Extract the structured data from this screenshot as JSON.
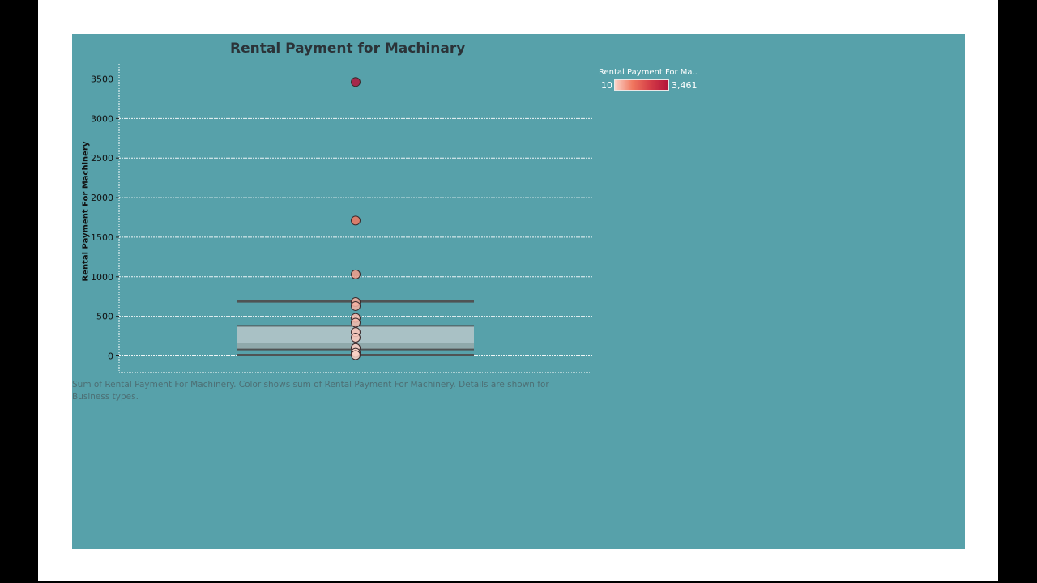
{
  "colors": {
    "page_background": "#000000",
    "frame": "#ffffff",
    "dashboard_background": "#57a1aa",
    "title": "#2b3338",
    "gridline": "#ffffff",
    "box_fill_upper": "#a9c1c5",
    "box_fill_lower": "#8fa9ab",
    "whisker": "#4f5354",
    "point_stroke": "#3a2a2c",
    "color_low": "#fbd3c8",
    "color_mid": "#f0765e",
    "color_high": "#b3133b"
  },
  "caption": "Sum of Rental Payment For Machinery.  Color shows sum of Rental Payment For Machinery.  Details are shown for Business types.",
  "legend": {
    "title": "Rental Payment For Ma..",
    "min_label": "10",
    "max_label": "3,461",
    "min_value": 10,
    "max_value": 3461
  },
  "chart_data": {
    "type": "scatter",
    "subtype": "box-and-whisker with jittered points",
    "title": "Rental Payment for Machinary",
    "xlabel": "",
    "ylabel": "Rental Payment For Machinery",
    "ylim": [
      -220,
      3700
    ],
    "yticks": [
      0,
      500,
      1000,
      1500,
      2000,
      2500,
      3000,
      3500
    ],
    "grid": true,
    "legend_position": "top-right",
    "box": {
      "lower_whisker": 10,
      "q1": 80,
      "median": 160,
      "q3": 380,
      "upper_whisker": 690
    },
    "points": [
      {
        "y": 3461
      },
      {
        "y": 1710
      },
      {
        "y": 1030
      },
      {
        "y": 680
      },
      {
        "y": 630
      },
      {
        "y": 480
      },
      {
        "y": 420
      },
      {
        "y": 300
      },
      {
        "y": 230
      },
      {
        "y": 100
      },
      {
        "y": 40
      },
      {
        "y": 10
      }
    ]
  }
}
